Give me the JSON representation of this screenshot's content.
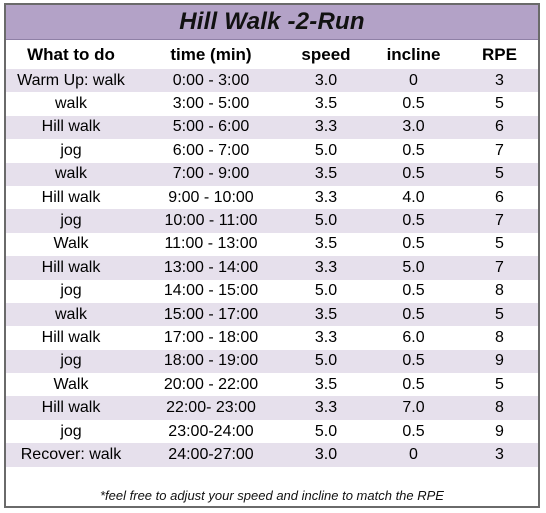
{
  "title": "Hill Walk -2-Run",
  "columns": [
    "What to do",
    "time (min)",
    "speed",
    "incline",
    "RPE"
  ],
  "rows": [
    [
      "Warm Up: walk",
      "0:00 - 3:00",
      "3.0",
      "0",
      "3"
    ],
    [
      "walk",
      "3:00 - 5:00",
      "3.5",
      "0.5",
      "5"
    ],
    [
      "Hill walk",
      "5:00 - 6:00",
      "3.3",
      "3.0",
      "6"
    ],
    [
      "jog",
      "6:00 - 7:00",
      "5.0",
      "0.5",
      "7"
    ],
    [
      "walk",
      "7:00 - 9:00",
      "3.5",
      "0.5",
      "5"
    ],
    [
      "Hill walk",
      "9:00 - 10:00",
      "3.3",
      "4.0",
      "6"
    ],
    [
      "jog",
      "10:00 - 11:00",
      "5.0",
      "0.5",
      "7"
    ],
    [
      "Walk",
      "11:00 - 13:00",
      "3.5",
      "0.5",
      "5"
    ],
    [
      "Hill walk",
      "13:00 - 14:00",
      "3.3",
      "5.0",
      "7"
    ],
    [
      "jog",
      "14:00 - 15:00",
      "5.0",
      "0.5",
      "8"
    ],
    [
      "walk",
      "15:00 - 17:00",
      "3.5",
      "0.5",
      "5"
    ],
    [
      "Hill walk",
      "17:00 - 18:00",
      "3.3",
      "6.0",
      "8"
    ],
    [
      "jog",
      "18:00 - 19:00",
      "5.0",
      "0.5",
      "9"
    ],
    [
      "Walk",
      "20:00 - 22:00",
      "3.5",
      "0.5",
      "5"
    ],
    [
      "Hill walk",
      "22:00- 23:00",
      "3.3",
      "7.0",
      "8"
    ],
    [
      "jog",
      "23:00-24:00",
      "5.0",
      "0.5",
      "9"
    ],
    [
      "Recover: walk",
      "24:00-27:00",
      "3.0",
      "0",
      "3"
    ]
  ],
  "footnote": "*feel free to adjust your speed and incline to match the RPE"
}
